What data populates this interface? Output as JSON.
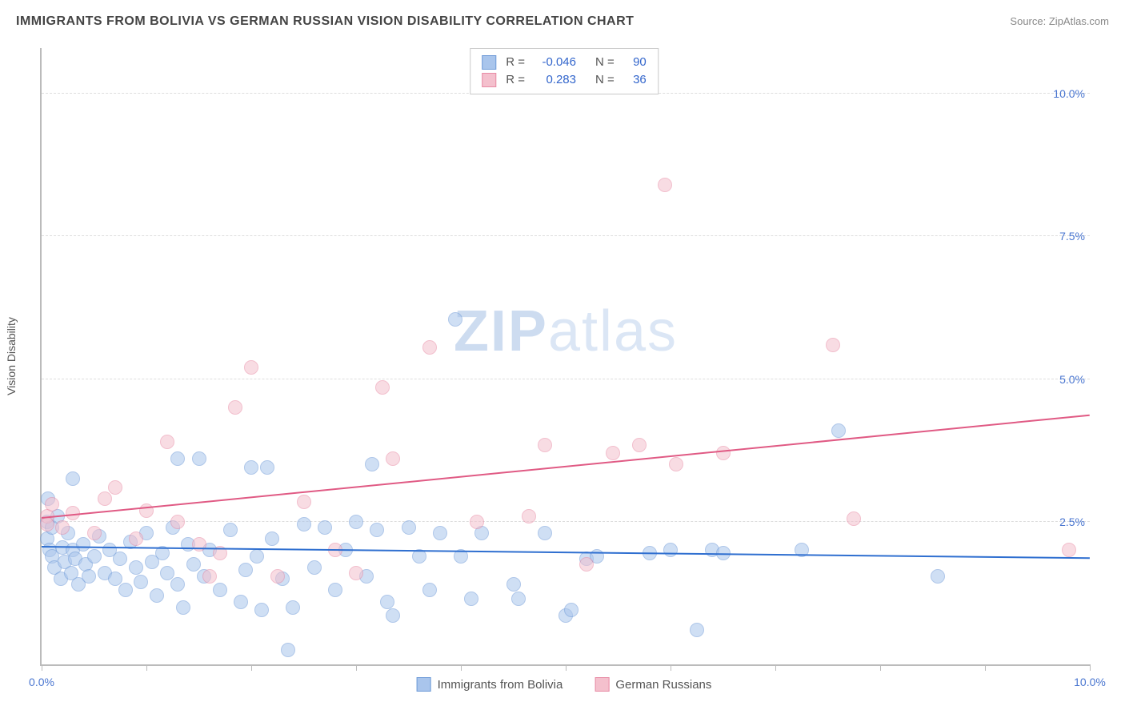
{
  "title": "IMMIGRANTS FROM BOLIVIA VS GERMAN RUSSIAN VISION DISABILITY CORRELATION CHART",
  "source_label": "Source:",
  "source_name": "ZipAtlas.com",
  "watermark_a": "ZIP",
  "watermark_b": "atlas",
  "y_axis_title": "Vision Disability",
  "chart": {
    "type": "scatter",
    "xlim": [
      0,
      10
    ],
    "ylim": [
      0,
      10.8
    ],
    "y_gridlines": [
      2.5,
      5.0,
      7.5,
      10.0
    ],
    "y_tick_labels": [
      "2.5%",
      "5.0%",
      "7.5%",
      "10.0%"
    ],
    "x_ticks": [
      0,
      1,
      2,
      3,
      4,
      5,
      6,
      7,
      8,
      9,
      10
    ],
    "x_tick_labels_shown": {
      "0": "0.0%",
      "10": "10.0%"
    },
    "background_color": "#ffffff",
    "grid_color": "#dddddd",
    "axis_color": "#bbbbbb",
    "tick_label_color": "#4a76d0",
    "point_radius": 8,
    "point_opacity": 0.55,
    "series": [
      {
        "name": "Immigrants from Bolivia",
        "color_fill": "#a9c5ec",
        "color_stroke": "#6f9bd8",
        "R": "-0.046",
        "N": "90",
        "trend": {
          "x0": 0,
          "y0": 2.05,
          "x1": 10,
          "y1": 1.85,
          "color": "#2f6fd0",
          "width": 2
        },
        "points": [
          [
            0.05,
            2.5
          ],
          [
            0.05,
            2.2
          ],
          [
            0.08,
            2.0
          ],
          [
            0.1,
            1.9
          ],
          [
            0.1,
            2.4
          ],
          [
            0.12,
            1.7
          ],
          [
            0.15,
            2.6
          ],
          [
            0.18,
            1.5
          ],
          [
            0.2,
            2.05
          ],
          [
            0.22,
            1.8
          ],
          [
            0.25,
            2.3
          ],
          [
            0.28,
            1.6
          ],
          [
            0.3,
            2.0
          ],
          [
            0.32,
            1.85
          ],
          [
            0.35,
            1.4
          ],
          [
            0.4,
            2.1
          ],
          [
            0.42,
            1.75
          ],
          [
            0.45,
            1.55
          ],
          [
            0.5,
            1.9
          ],
          [
            0.55,
            2.25
          ],
          [
            0.6,
            1.6
          ],
          [
            0.65,
            2.0
          ],
          [
            0.7,
            1.5
          ],
          [
            0.75,
            1.85
          ],
          [
            0.8,
            1.3
          ],
          [
            0.85,
            2.15
          ],
          [
            0.9,
            1.7
          ],
          [
            0.95,
            1.45
          ],
          [
            1.0,
            2.3
          ],
          [
            1.05,
            1.8
          ],
          [
            1.1,
            1.2
          ],
          [
            1.15,
            1.95
          ],
          [
            1.2,
            1.6
          ],
          [
            1.25,
            2.4
          ],
          [
            1.3,
            1.4
          ],
          [
            1.35,
            1.0
          ],
          [
            1.4,
            2.1
          ],
          [
            1.45,
            1.75
          ],
          [
            1.5,
            3.6
          ],
          [
            1.55,
            1.55
          ],
          [
            1.6,
            2.0
          ],
          [
            1.7,
            1.3
          ],
          [
            1.8,
            2.35
          ],
          [
            1.9,
            1.1
          ],
          [
            1.95,
            1.65
          ],
          [
            2.0,
            3.45
          ],
          [
            2.05,
            1.9
          ],
          [
            2.1,
            0.95
          ],
          [
            2.2,
            2.2
          ],
          [
            2.3,
            1.5
          ],
          [
            2.35,
            0.25
          ],
          [
            2.4,
            1.0
          ],
          [
            2.5,
            2.45
          ],
          [
            2.6,
            1.7
          ],
          [
            2.7,
            2.4
          ],
          [
            2.8,
            1.3
          ],
          [
            2.9,
            2.0
          ],
          [
            3.0,
            2.5
          ],
          [
            3.1,
            1.55
          ],
          [
            3.15,
            3.5
          ],
          [
            3.2,
            2.35
          ],
          [
            3.3,
            1.1
          ],
          [
            3.35,
            0.85
          ],
          [
            3.5,
            2.4
          ],
          [
            3.6,
            1.9
          ],
          [
            3.7,
            1.3
          ],
          [
            3.8,
            2.3
          ],
          [
            3.95,
            6.05
          ],
          [
            4.0,
            1.9
          ],
          [
            4.1,
            1.15
          ],
          [
            4.2,
            2.3
          ],
          [
            4.5,
            1.4
          ],
          [
            4.55,
            1.15
          ],
          [
            4.8,
            2.3
          ],
          [
            5.0,
            0.85
          ],
          [
            5.05,
            0.95
          ],
          [
            5.2,
            1.85
          ],
          [
            5.3,
            1.9
          ],
          [
            5.8,
            1.95
          ],
          [
            6.0,
            2.0
          ],
          [
            6.25,
            0.6
          ],
          [
            6.4,
            2.0
          ],
          [
            6.5,
            1.95
          ],
          [
            7.25,
            2.0
          ],
          [
            7.6,
            4.1
          ],
          [
            8.55,
            1.55
          ],
          [
            0.06,
            2.9
          ],
          [
            0.3,
            3.25
          ],
          [
            1.3,
            3.6
          ],
          [
            2.15,
            3.45
          ]
        ]
      },
      {
        "name": "German Russians",
        "color_fill": "#f4c0cd",
        "color_stroke": "#e88ba5",
        "R": "0.283",
        "N": "36",
        "trend": {
          "x0": 0,
          "y0": 2.55,
          "x1": 10,
          "y1": 4.35,
          "color": "#e05a84",
          "width": 2
        },
        "points": [
          [
            0.05,
            2.6
          ],
          [
            0.1,
            2.8
          ],
          [
            0.2,
            2.4
          ],
          [
            0.3,
            2.65
          ],
          [
            0.5,
            2.3
          ],
          [
            0.6,
            2.9
          ],
          [
            0.7,
            3.1
          ],
          [
            0.9,
            2.2
          ],
          [
            1.0,
            2.7
          ],
          [
            1.2,
            3.9
          ],
          [
            1.3,
            2.5
          ],
          [
            1.5,
            2.1
          ],
          [
            1.6,
            1.55
          ],
          [
            1.7,
            1.95
          ],
          [
            1.85,
            4.5
          ],
          [
            2.0,
            5.2
          ],
          [
            2.25,
            1.55
          ],
          [
            2.5,
            2.85
          ],
          [
            2.8,
            2.0
          ],
          [
            3.0,
            1.6
          ],
          [
            3.25,
            4.85
          ],
          [
            3.35,
            3.6
          ],
          [
            3.7,
            5.55
          ],
          [
            4.15,
            2.5
          ],
          [
            4.65,
            2.6
          ],
          [
            4.8,
            3.85
          ],
          [
            5.2,
            1.75
          ],
          [
            5.45,
            3.7
          ],
          [
            5.7,
            3.85
          ],
          [
            5.95,
            8.4
          ],
          [
            6.05,
            3.5
          ],
          [
            6.5,
            3.7
          ],
          [
            7.55,
            5.6
          ],
          [
            7.75,
            2.55
          ],
          [
            9.8,
            2.0
          ],
          [
            0.05,
            2.45
          ]
        ]
      }
    ]
  },
  "stats_box": {
    "rows": [
      {
        "swatch_fill": "#a9c5ec",
        "swatch_stroke": "#6f9bd8",
        "r_label": "R =",
        "r_val": "-0.046",
        "n_label": "N =",
        "n_val": "90"
      },
      {
        "swatch_fill": "#f4c0cd",
        "swatch_stroke": "#e88ba5",
        "r_label": "R =",
        "r_val": "0.283",
        "n_label": "N =",
        "n_val": "36"
      }
    ]
  },
  "bottom_legend": [
    {
      "swatch_fill": "#a9c5ec",
      "swatch_stroke": "#6f9bd8",
      "label": "Immigrants from Bolivia"
    },
    {
      "swatch_fill": "#f4c0cd",
      "swatch_stroke": "#e88ba5",
      "label": "German Russians"
    }
  ]
}
